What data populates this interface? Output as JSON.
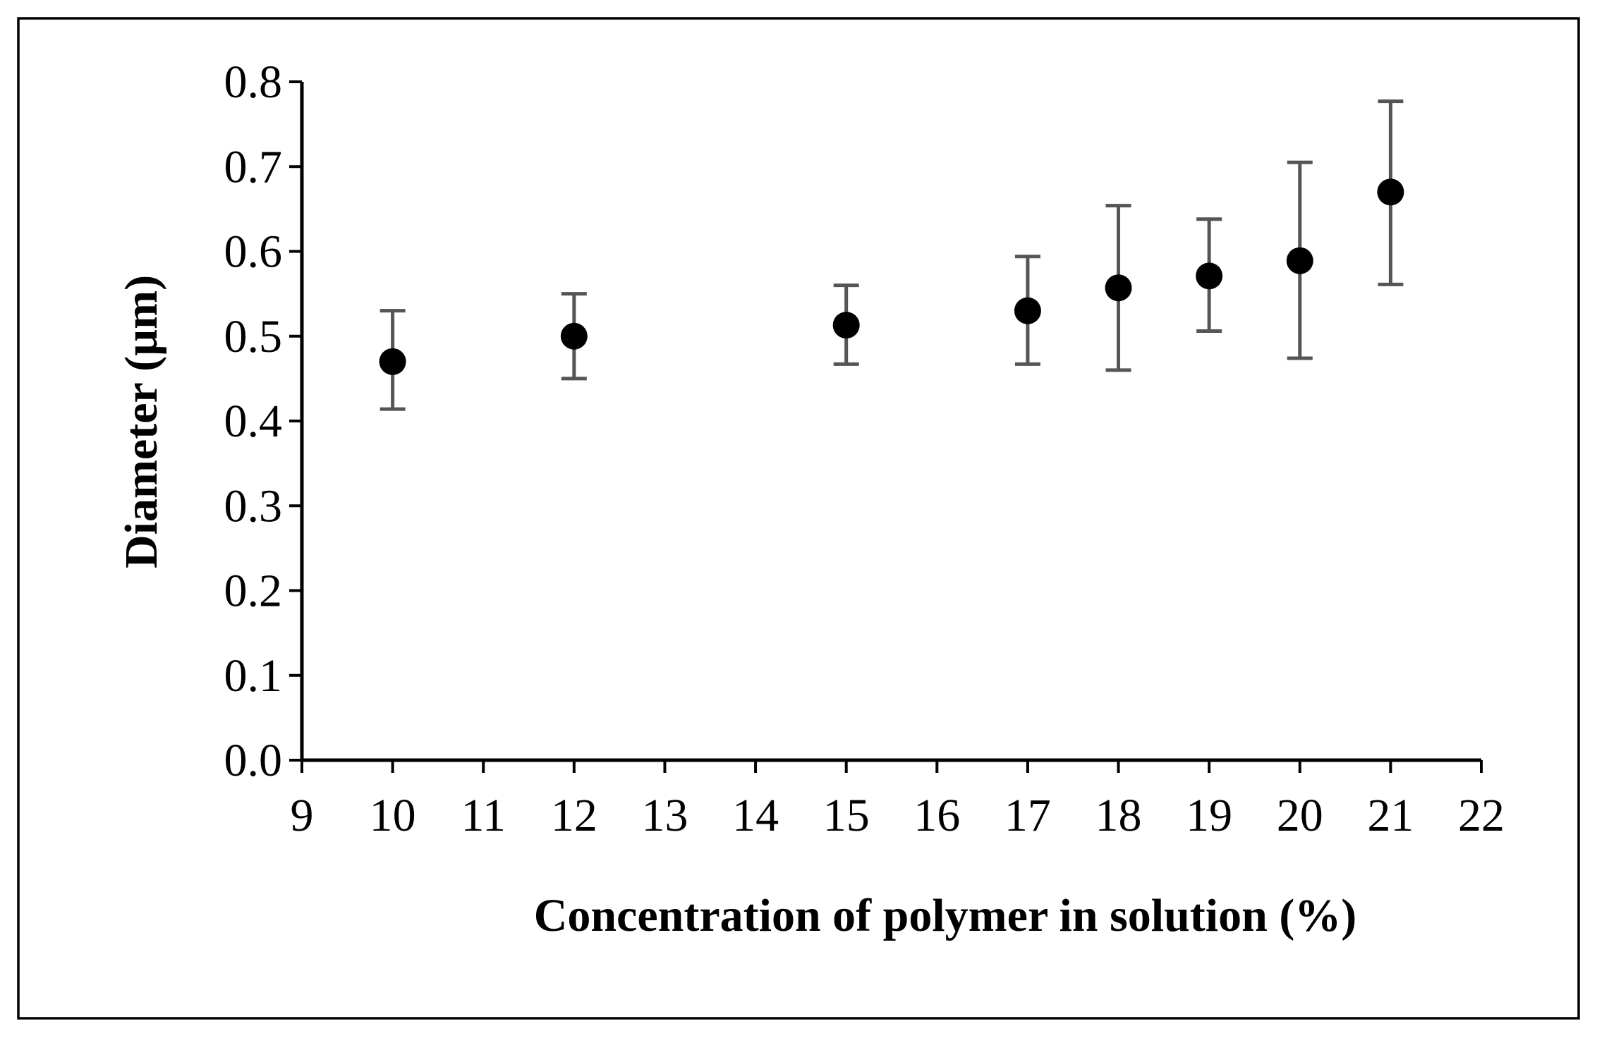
{
  "chart_data": {
    "type": "scatter",
    "title": "",
    "xlabel": "Concentration of polymer in solution (%)",
    "ylabel": "Diameter (µm)",
    "xlim": [
      9,
      22
    ],
    "ylim": [
      0.0,
      0.8
    ],
    "xticks": [
      "9",
      "10",
      "11",
      "12",
      "13",
      "14",
      "15",
      "16",
      "17",
      "18",
      "19",
      "20",
      "21",
      "22"
    ],
    "yticks": [
      "0.0",
      "0.1",
      "0.2",
      "0.3",
      "0.4",
      "0.5",
      "0.6",
      "0.7",
      "0.8"
    ],
    "grid": false,
    "legend": "none",
    "x": [
      10,
      12,
      15,
      17,
      18,
      19,
      20,
      21
    ],
    "y": [
      0.47,
      0.5,
      0.513,
      0.53,
      0.557,
      0.571,
      0.589,
      0.67
    ],
    "error_low": [
      0.414,
      0.45,
      0.467,
      0.467,
      0.46,
      0.506,
      0.474,
      0.561
    ],
    "error_high": [
      0.53,
      0.55,
      0.56,
      0.594,
      0.654,
      0.638,
      0.705,
      0.777
    ],
    "colors": {
      "marker": "#000000",
      "error_bar": "#555555",
      "axis": "#000000"
    }
  }
}
